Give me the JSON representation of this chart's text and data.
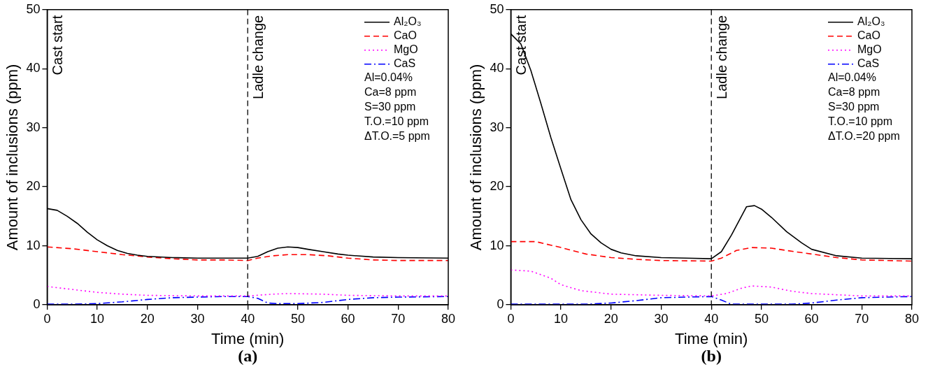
{
  "chart_data": [
    {
      "type": "line",
      "title": "(a)",
      "xlabel": "Time (min)",
      "ylabel": "Amount of inclusions (ppm)",
      "xlim": [
        0,
        80
      ],
      "xticks": [
        0,
        10,
        20,
        30,
        40,
        50,
        60,
        70,
        80
      ],
      "ylim": [
        0,
        50
      ],
      "yticks": [
        0,
        10,
        20,
        30,
        40,
        50
      ],
      "grid": false,
      "legend": "top right",
      "marker": "none",
      "series": [
        {
          "name": "Al₂O₃",
          "color": "#000000",
          "line_style": "solid",
          "x": [
            0,
            2,
            4,
            6,
            8,
            10,
            12,
            14,
            16,
            18,
            20,
            25,
            30,
            35,
            40,
            42,
            44,
            46,
            48,
            50,
            52,
            55,
            58,
            60,
            65,
            70,
            80
          ],
          "values": [
            16.3,
            16,
            15,
            13.8,
            12.3,
            11,
            10,
            9.2,
            8.7,
            8.4,
            8.2,
            8,
            7.9,
            7.9,
            7.9,
            8.2,
            9,
            9.6,
            9.8,
            9.7,
            9.4,
            9,
            8.6,
            8.4,
            8.1,
            8,
            7.9
          ]
        },
        {
          "name": "CaO",
          "color": "#ff0000",
          "line_style": "dashed",
          "x": [
            0,
            5,
            10,
            15,
            20,
            25,
            30,
            35,
            40,
            42,
            45,
            48,
            52,
            56,
            60,
            65,
            70,
            80
          ],
          "values": [
            9.8,
            9.5,
            9,
            8.5,
            8.1,
            7.8,
            7.6,
            7.6,
            7.5,
            7.9,
            8.3,
            8.5,
            8.5,
            8.3,
            7.9,
            7.6,
            7.5,
            7.5
          ]
        },
        {
          "name": "MgO",
          "color": "#ff00ff",
          "line_style": "dotted",
          "x": [
            0,
            5,
            10,
            15,
            20,
            30,
            40,
            45,
            48,
            55,
            60,
            70,
            80
          ],
          "values": [
            3.1,
            2.6,
            2.1,
            1.8,
            1.6,
            1.5,
            1.5,
            1.8,
            1.9,
            1.8,
            1.6,
            1.5,
            1.5
          ]
        },
        {
          "name": "CaS",
          "color": "#0000ff",
          "line_style": "dashdot",
          "x": [
            0,
            5,
            10,
            15,
            20,
            25,
            30,
            35,
            40,
            42,
            44,
            46,
            50,
            55,
            60,
            65,
            70,
            80
          ],
          "values": [
            0.1,
            0.1,
            0.2,
            0.5,
            0.9,
            1.2,
            1.3,
            1.4,
            1.4,
            1.1,
            0.3,
            0.2,
            0.2,
            0.4,
            0.9,
            1.2,
            1.3,
            1.4
          ]
        }
      ],
      "ref_lines": [
        {
          "axis": "x",
          "value": 40,
          "label": "Ladle change",
          "line_style": "dashed"
        }
      ],
      "annotations": [
        "Cast start",
        "Al=0.04%",
        "Ca=8 ppm",
        "S=30 ppm",
        "T.O.=10 ppm",
        "ΔT.O.=5 ppm"
      ]
    },
    {
      "type": "line",
      "title": "(b)",
      "xlabel": "Time (min)",
      "ylabel": "Amount of inclusions (ppm)",
      "xlim": [
        0,
        80
      ],
      "xticks": [
        0,
        10,
        20,
        30,
        40,
        50,
        60,
        70,
        80
      ],
      "ylim": [
        0,
        50
      ],
      "yticks": [
        0,
        10,
        20,
        30,
        40,
        50
      ],
      "grid": false,
      "legend": "top right",
      "marker": "none",
      "series": [
        {
          "name": "Al₂O₃",
          "color": "#000000",
          "line_style": "solid",
          "x": [
            0,
            2,
            4,
            6,
            8,
            10,
            12,
            14,
            16,
            18,
            20,
            22,
            25,
            30,
            35,
            40,
            42,
            44,
            46,
            47,
            48.6,
            50,
            52,
            55,
            58,
            60,
            65,
            70,
            80
          ],
          "values": [
            45.9,
            44.2,
            39.7,
            34.1,
            28.3,
            23,
            17.8,
            14.4,
            12,
            10.5,
            9.4,
            8.8,
            8.3,
            8,
            7.9,
            7.8,
            9,
            11.8,
            15,
            16.6,
            16.8,
            16.2,
            14.8,
            12.4,
            10.5,
            9.4,
            8.3,
            7.9,
            7.8
          ]
        },
        {
          "name": "CaO",
          "color": "#ff0000",
          "line_style": "dashed",
          "x": [
            0,
            5,
            8,
            10,
            15,
            20,
            25,
            30,
            40,
            42,
            45,
            48,
            52,
            55,
            60,
            65,
            70,
            80
          ],
          "values": [
            10.7,
            10.7,
            10.1,
            9.7,
            8.6,
            8,
            7.7,
            7.5,
            7.4,
            7.9,
            9.2,
            9.7,
            9.6,
            9.2,
            8.6,
            8,
            7.6,
            7.4
          ]
        },
        {
          "name": "MgO",
          "color": "#ff00ff",
          "line_style": "dotted",
          "x": [
            0,
            4,
            8,
            10,
            14,
            20,
            30,
            40,
            43,
            46,
            48,
            52,
            56,
            60,
            70,
            80
          ],
          "values": [
            5.9,
            5.7,
            4.5,
            3.4,
            2.4,
            1.8,
            1.6,
            1.5,
            1.9,
            2.8,
            3.2,
            3,
            2.3,
            1.9,
            1.5,
            1.5
          ]
        },
        {
          "name": "CaS",
          "color": "#0000ff",
          "line_style": "dashdot",
          "x": [
            0,
            15,
            20,
            25,
            30,
            35,
            40,
            42,
            44,
            50,
            56,
            60,
            65,
            70,
            75,
            80
          ],
          "values": [
            0.1,
            0.1,
            0.3,
            0.7,
            1.2,
            1.3,
            1.4,
            0.8,
            0.1,
            0.1,
            0.1,
            0.3,
            0.8,
            1.2,
            1.3,
            1.4
          ]
        }
      ],
      "ref_lines": [
        {
          "axis": "x",
          "value": 40,
          "label": "Ladle change",
          "line_style": "dashed"
        }
      ],
      "annotations": [
        "Cast start",
        "Al=0.04%",
        "Ca=8 ppm",
        "S=30 ppm",
        "T.O.=10 ppm",
        "ΔT.O.=20 ppm"
      ]
    }
  ]
}
